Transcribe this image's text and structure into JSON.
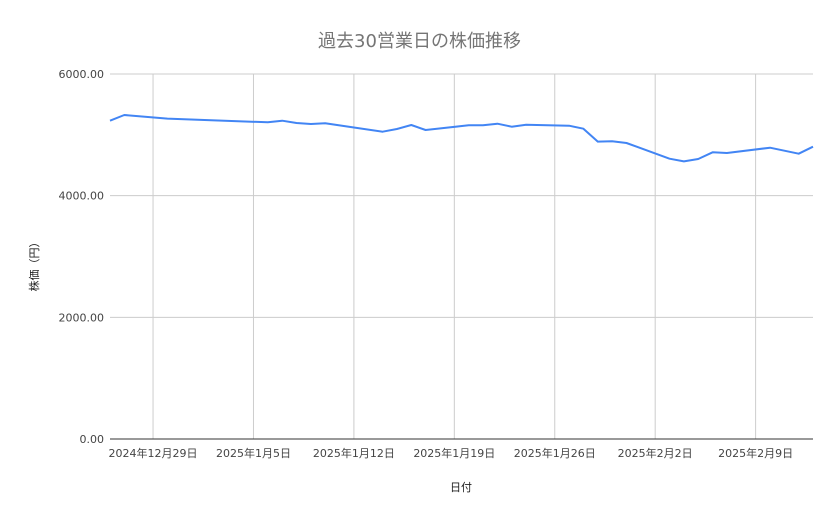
{
  "chart_data": {
    "type": "line",
    "title": "過去30営業日の株価推移",
    "xlabel": "日付",
    "ylabel": "株価（円）",
    "ylim": [
      0,
      6000
    ],
    "xlim": [
      "2024-12-26",
      "2025-02-13"
    ],
    "grid": true,
    "legend": "none",
    "y_ticks": [
      "0.00",
      "2000.00",
      "4000.00",
      "6000.00"
    ],
    "y_tick_values": [
      0,
      2000,
      4000,
      6000
    ],
    "x_ticks": [
      {
        "date": "2024-12-29",
        "label": "2024年12月29日"
      },
      {
        "date": "2025-01-05",
        "label": "2025年1月5日"
      },
      {
        "date": "2025-01-12",
        "label": "2025年1月12日"
      },
      {
        "date": "2025-01-19",
        "label": "2025年1月19日"
      },
      {
        "date": "2025-01-26",
        "label": "2025年1月26日"
      },
      {
        "date": "2025-02-02",
        "label": "2025年2月2日"
      },
      {
        "date": "2025-02-09",
        "label": "2025年2月9日"
      }
    ],
    "series": [
      {
        "color": "#4285f4",
        "x": [
          "2024-12-26",
          "2024-12-27",
          "2024-12-30",
          "2025-01-06",
          "2025-01-07",
          "2025-01-08",
          "2025-01-09",
          "2025-01-10",
          "2025-01-14",
          "2025-01-15",
          "2025-01-16",
          "2025-01-17",
          "2025-01-20",
          "2025-01-21",
          "2025-01-22",
          "2025-01-23",
          "2025-01-24",
          "2025-01-27",
          "2025-01-28",
          "2025-01-29",
          "2025-01-30",
          "2025-01-31",
          "2025-02-03",
          "2025-02-04",
          "2025-02-05",
          "2025-02-06",
          "2025-02-07",
          "2025-02-10",
          "2025-02-12",
          "2025-02-13"
        ],
        "values": [
          5232,
          5326,
          5267,
          5206,
          5232,
          5195,
          5178,
          5189,
          5052,
          5096,
          5162,
          5079,
          5156,
          5156,
          5183,
          5134,
          5167,
          5150,
          5101,
          4888,
          4893,
          4866,
          4608,
          4564,
          4603,
          4713,
          4701,
          4789,
          4690,
          4805
        ]
      }
    ]
  }
}
